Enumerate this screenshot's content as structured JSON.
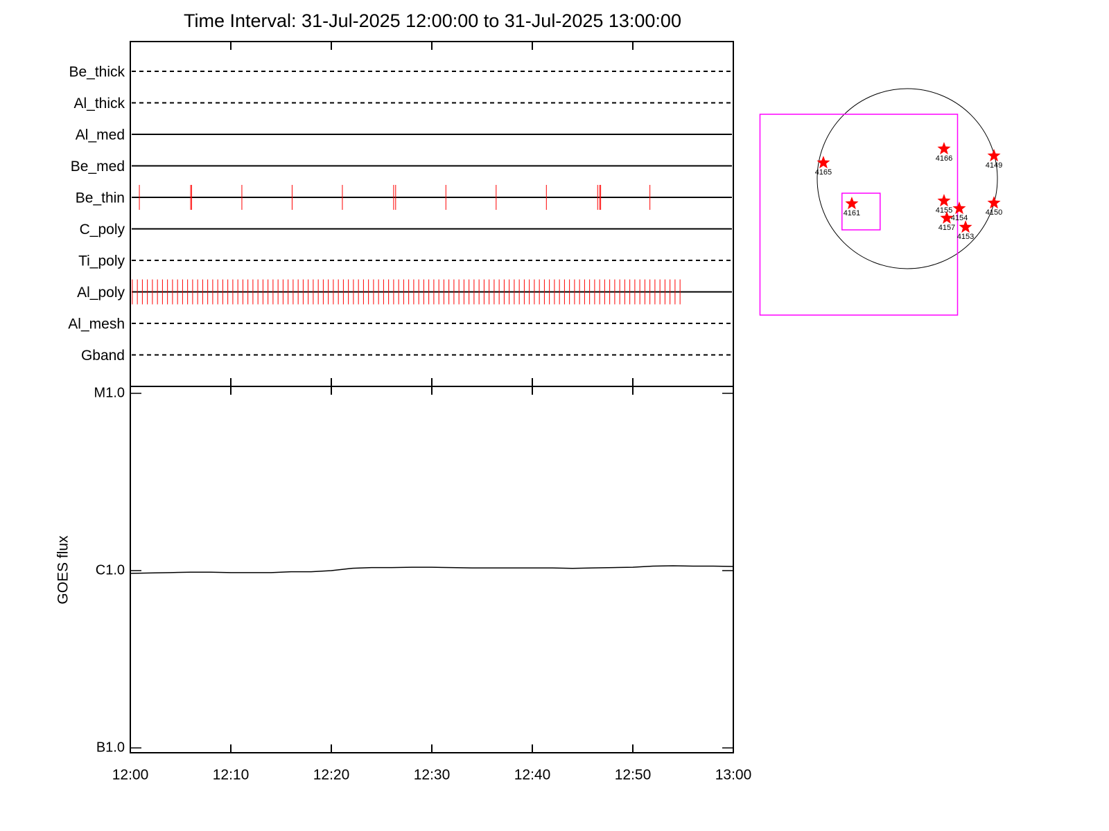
{
  "chart_data": [
    {
      "type": "timeline",
      "title": "Time Interval: 31-Jul-2025 12:00:00 to 31-Jul-2025 13:00:00",
      "xlim": [
        0,
        60
      ],
      "xticks": [
        {
          "value": 0,
          "label": "12:00"
        },
        {
          "value": 10,
          "label": "12:10"
        },
        {
          "value": 20,
          "label": "12:20"
        },
        {
          "value": 30,
          "label": "12:30"
        },
        {
          "value": 40,
          "label": "12:40"
        },
        {
          "value": 50,
          "label": "12:50"
        },
        {
          "value": 60,
          "label": "13:00"
        }
      ],
      "color": "#ff0000",
      "series": [
        {
          "name": "Be_thick",
          "style": "dashed",
          "values": []
        },
        {
          "name": "Al_thick",
          "style": "dashed",
          "values": []
        },
        {
          "name": "Al_med",
          "style": "solid",
          "values": []
        },
        {
          "name": "Be_med",
          "style": "solid",
          "values": []
        },
        {
          "name": "Be_thin",
          "style": "solid",
          "values": [
            0.9,
            6.0,
            6.1,
            11.1,
            16.1,
            21.1,
            26.2,
            26.4,
            31.4,
            36.4,
            41.4,
            46.5,
            46.7,
            46.8,
            51.7
          ]
        },
        {
          "name": "C_poly",
          "style": "solid",
          "values": []
        },
        {
          "name": "Ti_poly",
          "style": "dashed",
          "values": []
        },
        {
          "name": "Al_poly",
          "style": "solid",
          "values": [
            0.2,
            0.7,
            1.2,
            1.7,
            2.2,
            2.7,
            3.2,
            3.7,
            4.2,
            4.7,
            5.2,
            5.7,
            6.2,
            6.7,
            7.2,
            7.7,
            8.2,
            8.7,
            9.2,
            9.7,
            10.2,
            10.7,
            11.2,
            11.7,
            12.2,
            12.7,
            13.2,
            13.7,
            14.2,
            14.7,
            15.2,
            15.7,
            16.2,
            16.7,
            17.2,
            17.7,
            18.2,
            18.7,
            19.2,
            19.7,
            20.2,
            20.7,
            21.2,
            21.7,
            22.2,
            22.7,
            23.2,
            23.7,
            24.2,
            24.7,
            25.2,
            25.7,
            26.2,
            26.7,
            27.2,
            27.7,
            28.2,
            28.7,
            29.2,
            29.7,
            30.2,
            30.7,
            31.2,
            31.7,
            32.2,
            32.7,
            33.2,
            33.7,
            34.2,
            34.7,
            35.2,
            35.7,
            36.2,
            36.7,
            37.2,
            37.7,
            38.2,
            38.7,
            39.2,
            39.7,
            40.2,
            40.7,
            41.2,
            41.7,
            42.2,
            42.7,
            43.2,
            43.7,
            44.2,
            44.7,
            45.2,
            45.7,
            46.2,
            46.7,
            47.2,
            47.7,
            48.2,
            48.7,
            49.2,
            49.7,
            50.2,
            50.7,
            51.2,
            51.7,
            52.2,
            52.7,
            53.2,
            53.7,
            54.2,
            54.7
          ]
        },
        {
          "name": "Al_mesh",
          "style": "dashed",
          "values": []
        },
        {
          "name": "Gband",
          "style": "dashed",
          "values": []
        }
      ]
    },
    {
      "type": "line",
      "ylabel": "GOES flux",
      "log": true,
      "color": "#000000",
      "xlim": [
        0,
        60
      ],
      "xticks": [
        {
          "value": 0,
          "label": "12:00"
        },
        {
          "value": 10,
          "label": "12:10"
        },
        {
          "value": 20,
          "label": "12:20"
        },
        {
          "value": 30,
          "label": "12:30"
        },
        {
          "value": 40,
          "label": "12:40"
        },
        {
          "value": 50,
          "label": "12:50"
        },
        {
          "value": 60,
          "label": "13:00"
        }
      ],
      "ylim": [
        1e-07,
        1e-05
      ],
      "yticks": [
        {
          "value": 1e-07,
          "label": "B1.0"
        },
        {
          "value": 1e-06,
          "label": "C1.0"
        },
        {
          "value": 1e-05,
          "label": "M1.0"
        }
      ],
      "x": [
        0,
        2,
        4,
        6,
        8,
        10,
        12,
        14,
        16,
        18,
        20,
        22,
        24,
        26,
        28,
        30,
        32,
        34,
        36,
        38,
        40,
        42,
        44,
        46,
        48,
        50,
        52,
        54,
        56,
        58,
        60
      ],
      "values": [
        9.65e-07,
        9.7e-07,
        9.75e-07,
        9.8e-07,
        9.8e-07,
        9.75e-07,
        9.75e-07,
        9.75e-07,
        9.85e-07,
        9.85e-07,
        1e-06,
        1.03e-06,
        1.04e-06,
        1.04e-06,
        1.045e-06,
        1.045e-06,
        1.04e-06,
        1.035e-06,
        1.035e-06,
        1.035e-06,
        1.035e-06,
        1.035e-06,
        1.03e-06,
        1.035e-06,
        1.04e-06,
        1.045e-06,
        1.06e-06,
        1.065e-06,
        1.06e-06,
        1.06e-06,
        1.055e-06
      ]
    },
    {
      "type": "map",
      "disk_radius": 945,
      "color": "#ff0000",
      "box_color": "#ff00ff",
      "points": [
        {
          "label": "4165",
          "x": -880,
          "y": 167
        },
        {
          "label": "4166",
          "x": 385,
          "y": 313
        },
        {
          "label": "4149",
          "x": 909,
          "y": 240
        },
        {
          "label": "4161",
          "x": -582,
          "y": -262
        },
        {
          "label": "4155",
          "x": 385,
          "y": -233
        },
        {
          "label": "4154",
          "x": 545,
          "y": -313
        },
        {
          "label": "4150",
          "x": 909,
          "y": -255
        },
        {
          "label": "4157",
          "x": 414,
          "y": -414
        },
        {
          "label": "4153",
          "x": 611,
          "y": -509
        }
      ],
      "boxes": [
        {
          "xc": -509,
          "yc": -378,
          "width": 2072,
          "height": 2108
        },
        {
          "xc": -485,
          "yc": -345,
          "width": 400,
          "height": 385
        }
      ]
    }
  ]
}
